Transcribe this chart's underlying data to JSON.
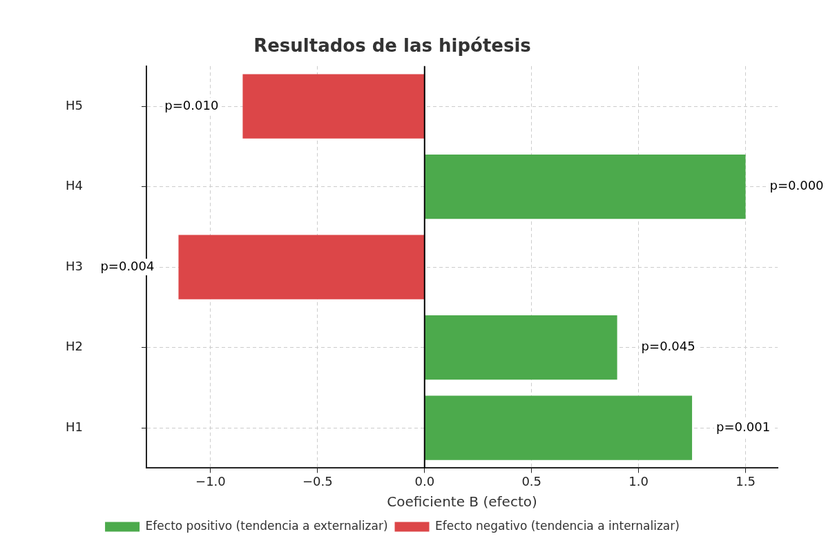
{
  "chart_data": {
    "type": "bar",
    "orientation": "horizontal",
    "title": "Resultados de las hipótesis",
    "xlabel": "Coeficiente B (efecto)",
    "categories": [
      "H5",
      "H4",
      "H3",
      "H2",
      "H1"
    ],
    "series": [
      {
        "name": "Efecto positivo (tendencia a externalizar)",
        "color": "#4caa4c",
        "values": [
          null,
          1.5,
          null,
          0.9,
          1.25
        ]
      },
      {
        "name": "Efecto negativo (tendencia a internalizar)",
        "color": "#dc4648",
        "values": [
          -0.85,
          null,
          -1.15,
          null,
          null
        ]
      }
    ],
    "annotations": [
      {
        "text": "p=0.010",
        "x": -0.85,
        "y": "H5"
      },
      {
        "text": "p=0.000",
        "x": 1.5,
        "y": "H4"
      },
      {
        "text": "p=0.004",
        "x": -1.15,
        "y": "H3"
      },
      {
        "text": "p=0.045",
        "x": 0.9,
        "y": "H2"
      },
      {
        "text": "p=0.001",
        "x": 1.25,
        "y": "H1"
      }
    ],
    "xlim": [
      -1.3,
      1.65
    ],
    "xticks": [
      {
        "value": -1,
        "label": "−1.0"
      },
      {
        "value": -0.5,
        "label": "−0.5"
      },
      {
        "value": 0,
        "label": "0.0"
      },
      0.5,
      {
        "value": 1,
        "label": "1.0"
      },
      1.5
    ],
    "ref_lines": [
      {
        "axis": "x",
        "value": 0,
        "color": "#000000"
      }
    ],
    "grid": true,
    "legend": "bottom"
  }
}
